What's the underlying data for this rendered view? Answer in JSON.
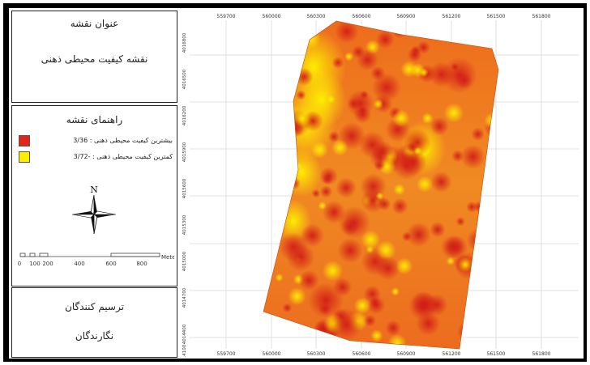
{
  "title_panel": {
    "label": "عنوان نقشه",
    "map_name": "نقشه کیفیت محیطی ذهنی"
  },
  "legend": {
    "heading": "راهنمای نقشه",
    "items": [
      {
        "label": "بیشترین کیفیت محیطی ذهنی : 3/36",
        "color": "#e0261a"
      },
      {
        "label": "کمترین کیفیت محیطی ذهنی : -3/72",
        "color": "#ffee00"
      }
    ]
  },
  "north_arrow": {
    "label": "N"
  },
  "scale_bar": {
    "ticks": [
      "0",
      "100",
      "200",
      "400",
      "600",
      "800"
    ],
    "unit": "Meters"
  },
  "credits": {
    "heading": "ترسیم کنندگان",
    "body": "نگارندگان"
  },
  "grid": {
    "x_labels_top": [
      "559700",
      "560000",
      "560300",
      "560600",
      "560900",
      "561200",
      "561500",
      "561800"
    ],
    "x_labels_bottom": [
      "559700",
      "560000",
      "560300",
      "560600",
      "560900",
      "561200",
      "561500",
      "561800"
    ],
    "y_labels": [
      "4016800",
      "4016500",
      "4016200",
      "4015900",
      "4015600",
      "4015300",
      "4015000",
      "4014700",
      "4014400",
      "4014100"
    ]
  },
  "colors": {
    "high": "#d8231a",
    "mid": "#f28a1e",
    "low": "#ffee00"
  }
}
